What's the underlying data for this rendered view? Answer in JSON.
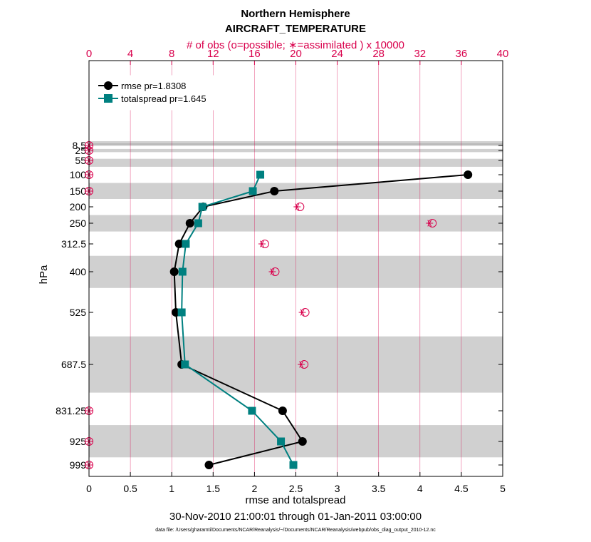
{
  "chart_data": {
    "type": "line",
    "title": "Northern Hemisphere",
    "subtitle": "AIRCRAFT_TEMPERATURE",
    "top_axis_label": "# of obs (o=possible; ∗=assimilated ) x 10000",
    "xlabel": "rmse and totalspread",
    "ylabel": "hPa",
    "date_range": "30-Nov-2010 21:00:01 through 01-Jan-2011 03:00:00",
    "footnote": "data file: /Users/gharamti/Documents/NCAR/Reanalysis/~/Documents/NCAR/Reanalysis/webpub/obs_diag_output_2010-12.nc",
    "xlim": [
      0,
      5
    ],
    "x_ticks": [
      "0",
      "0.5",
      "1",
      "1.5",
      "2",
      "2.5",
      "3",
      "3.5",
      "4",
      "4.5",
      "5"
    ],
    "top_xlim": [
      0,
      40
    ],
    "top_ticks": [
      "0",
      "4",
      "8",
      "12",
      "16",
      "20",
      "24",
      "28",
      "32",
      "36",
      "40"
    ],
    "y_levels": [
      8.5,
      25,
      55,
      100,
      150,
      200,
      250,
      312.5,
      400,
      525,
      687.5,
      831.25,
      925,
      999
    ],
    "y_tick_labels": [
      "8.5",
      "25",
      "55",
      "100",
      "150",
      "200",
      "250",
      "312.5",
      "400",
      "525",
      "687.5",
      "831.25",
      "925",
      "999"
    ],
    "y_reversed": true,
    "grid": true,
    "legend_position": "top-left",
    "series": [
      {
        "name": "rmse pr=1.8308",
        "color": "#000000",
        "marker": "circle",
        "points": [
          [
            4.58,
            100
          ],
          [
            2.24,
            150
          ],
          [
            1.38,
            200
          ],
          [
            1.22,
            250
          ],
          [
            1.09,
            312.5
          ],
          [
            1.03,
            400
          ],
          [
            1.05,
            525
          ],
          [
            1.12,
            687.5
          ],
          [
            2.34,
            831.25
          ],
          [
            2.58,
            925
          ],
          [
            1.45,
            999
          ]
        ]
      },
      {
        "name": "totalspread pr=1.645",
        "color": "#008080",
        "marker": "square",
        "points": [
          [
            2.07,
            100
          ],
          [
            1.98,
            150
          ],
          [
            1.37,
            200
          ],
          [
            1.32,
            250
          ],
          [
            1.17,
            312.5
          ],
          [
            1.13,
            400
          ],
          [
            1.12,
            525
          ],
          [
            1.16,
            687.5
          ],
          [
            1.97,
            831.25
          ],
          [
            2.32,
            925
          ],
          [
            2.47,
            999
          ]
        ]
      }
    ],
    "obs_counts": {
      "color": "#d9004c",
      "points": [
        [
          0,
          8.5
        ],
        [
          0,
          25
        ],
        [
          0,
          55
        ],
        [
          0,
          100
        ],
        [
          0,
          150
        ],
        [
          20.4,
          200
        ],
        [
          33.2,
          250
        ],
        [
          17.0,
          312.5
        ],
        [
          18.0,
          400
        ],
        [
          20.9,
          525
        ],
        [
          20.8,
          687.5
        ],
        [
          0,
          831.25
        ],
        [
          0,
          925
        ],
        [
          0,
          999
        ]
      ]
    },
    "shaded_layers": [
      [
        7,
        10
      ],
      [
        20,
        30
      ],
      [
        50,
        75
      ],
      [
        125,
        175
      ],
      [
        225,
        275
      ],
      [
        350,
        450
      ],
      [
        600,
        775
      ],
      [
        875,
        975
      ]
    ]
  }
}
